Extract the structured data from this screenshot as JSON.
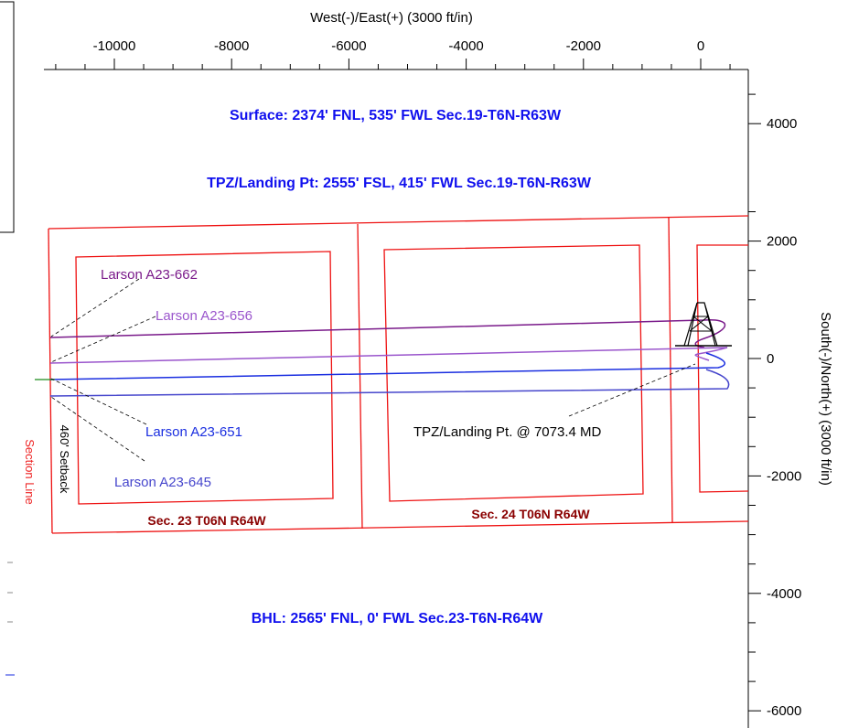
{
  "chart_data": {
    "type": "line",
    "xlabel": "West(-)/East(+) (3000 ft/in)",
    "ylabel": "South(-)/North(+) (3000 ft/in)",
    "x_ticks": [
      "-10000",
      "-8000",
      "-6000",
      "-4000",
      "-2000",
      "0"
    ],
    "y_ticks": [
      "4000",
      "2000",
      "0",
      "-2000",
      "-4000",
      "-6000"
    ],
    "xlim": [
      -11000,
      500
    ],
    "ylim": [
      -6400,
      5400
    ],
    "grid": false,
    "annotations": {
      "surface": "Surface: 2374' FNL, 535' FWL Sec.19-T6N-R63W",
      "landing_point": "TPZ/Landing Pt: 2555' FSL, 415' FWL Sec.19-T6N-R63W",
      "bhl": "BHL: 2565' FNL, 0' FWL Sec.23-T6N-R64W",
      "md_callout": "TPZ/Landing Pt. @ 7073.4 MD",
      "section_line": "Section Line",
      "setback": "460' Setback"
    },
    "sections": [
      {
        "label": "Sec. 23 T06N R64W"
      },
      {
        "label": "Sec. 24 T06N R64W"
      }
    ],
    "series": [
      {
        "name": "Larson A23-662",
        "color": "#7a1a8a",
        "y_start": 300,
        "y_end": 650
      },
      {
        "name": "Larson A23-656",
        "color": "#9a55cc",
        "y_start": -90,
        "y_end": 150
      },
      {
        "name": "Larson A23-651",
        "color": "#1a2ee0",
        "y_start": -340,
        "y_end": -180
      },
      {
        "name": "Larson A23-645",
        "color": "#4646cc",
        "y_start": -640,
        "y_end": -470
      }
    ]
  },
  "colors": {
    "section_red": "#ee1111",
    "axis": "#000000"
  }
}
